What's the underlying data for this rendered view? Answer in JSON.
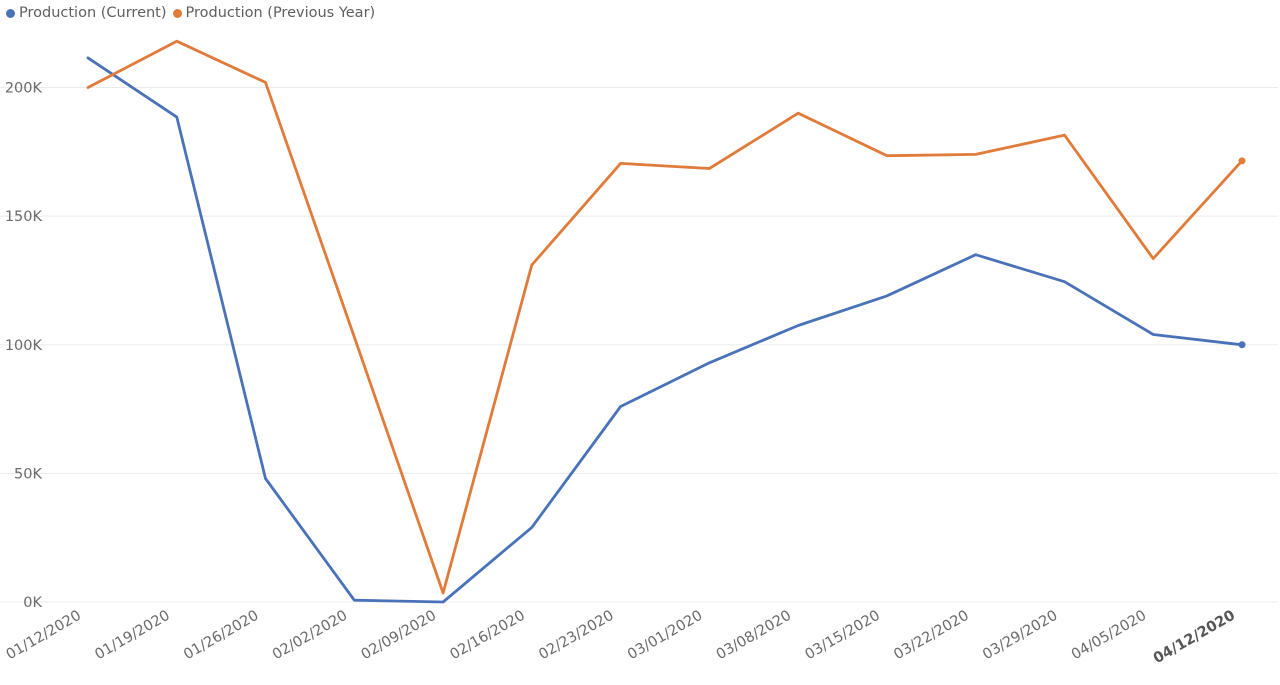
{
  "legend": {
    "position": "top-left",
    "items": [
      {
        "label": "Production (Current)",
        "color": "#4a72b8"
      },
      {
        "label": "Production (Previous Year)",
        "color": "#e07b39"
      }
    ]
  },
  "chart_data": {
    "type": "line",
    "title": "",
    "xlabel": "",
    "ylabel": "",
    "x": [
      "01/12/2020",
      "01/19/2020",
      "01/26/2020",
      "02/02/2020",
      "02/09/2020",
      "02/16/2020",
      "02/23/2020",
      "03/01/2020",
      "03/08/2020",
      "03/15/2020",
      "03/22/2020",
      "03/29/2020",
      "04/05/2020",
      "04/12/2020"
    ],
    "highlighted_x": "04/12/2020",
    "yticks": [
      0,
      50000,
      100000,
      150000,
      200000
    ],
    "ytick_labels": [
      "0K",
      "50K",
      "100K",
      "150K",
      "200K"
    ],
    "ylim": [
      0,
      225000
    ],
    "grid": true,
    "series": [
      {
        "name": "Production (Current)",
        "color": "#4a72b8",
        "values": [
          211500,
          188500,
          48000,
          700,
          0,
          29000,
          76000,
          93000,
          107500,
          119000,
          135000,
          124500,
          104000,
          100000
        ]
      },
      {
        "name": "Production (Previous Year)",
        "color": "#e07b39",
        "values": [
          200000,
          218000,
          202000,
          103000,
          3500,
          131000,
          170500,
          168500,
          190000,
          173500,
          174000,
          181500,
          133500,
          171500
        ]
      }
    ]
  }
}
